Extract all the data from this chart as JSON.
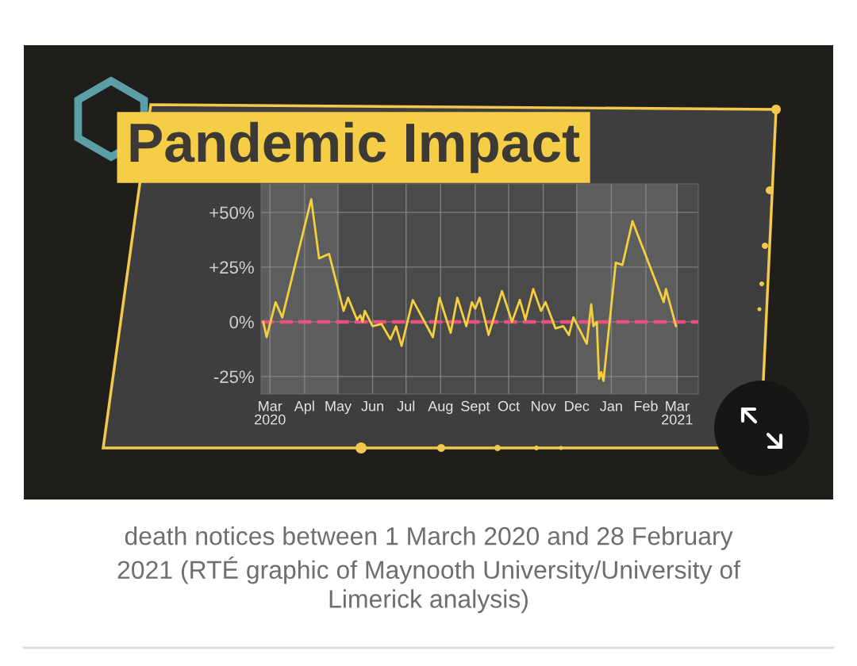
{
  "chart_data": {
    "type": "line",
    "title": "Pandemic Impact",
    "x": [
      "2020-02-24",
      "2020-02-27",
      "2020-03-06",
      "2020-03-12",
      "2020-04-07",
      "2020-04-14",
      "2020-04-23",
      "2020-05-06",
      "2020-05-10",
      "2020-05-18",
      "2020-05-21",
      "2020-05-23",
      "2020-05-25",
      "2020-06-01",
      "2020-06-09",
      "2020-06-17",
      "2020-06-22",
      "2020-06-27",
      "2020-07-07",
      "2020-07-25",
      "2020-07-31",
      "2020-08-10",
      "2020-08-16",
      "2020-08-24",
      "2020-08-29",
      "2020-09-01",
      "2020-09-05",
      "2020-09-13",
      "2020-09-25",
      "2020-10-04",
      "2020-10-11",
      "2020-10-16",
      "2020-10-23",
      "2020-10-30",
      "2020-11-03",
      "2020-11-12",
      "2020-11-19",
      "2020-11-24",
      "2020-11-28",
      "2020-12-10",
      "2020-12-14",
      "2020-12-16",
      "2020-12-19",
      "2020-12-21",
      "2020-12-23",
      "2020-12-25",
      "2021-01-05",
      "2021-01-11",
      "2021-01-20",
      "2021-02-17",
      "2021-02-19",
      "2021-02-28"
    ],
    "series": [
      {
        "color": "#f4d03f",
        "values": [
          0,
          -7,
          9,
          2,
          56,
          29,
          31,
          5,
          11,
          1,
          3,
          0,
          5,
          -2,
          -1,
          -8,
          -2,
          -11,
          10,
          -7,
          11,
          -5,
          11,
          -2,
          9,
          6,
          11,
          -6,
          14,
          0,
          10,
          1,
          15,
          5,
          9,
          -3,
          -2,
          -6,
          2,
          -10,
          8,
          -2,
          0,
          -26,
          -23,
          -27,
          27,
          26,
          46,
          9,
          15,
          -2
        ]
      }
    ],
    "xlim": [
      "2020-02-22",
      "2021-03-20"
    ],
    "ylim": [
      -33,
      63
    ],
    "xticks": [
      {
        "value": "2020-03-01",
        "label": "Mar\n2020"
      },
      {
        "value": "2020-04-01",
        "label": "Apl"
      },
      {
        "value": "2020-05-01",
        "label": "May"
      },
      {
        "value": "2020-06-01",
        "label": "Jun"
      },
      {
        "value": "2020-07-01",
        "label": "Jul"
      },
      {
        "value": "2020-08-01",
        "label": "Aug"
      },
      {
        "value": "2020-09-01",
        "label": "Sept"
      },
      {
        "value": "2020-10-01",
        "label": "Oct"
      },
      {
        "value": "2020-11-01",
        "label": "Nov"
      },
      {
        "value": "2020-12-01",
        "label": "Dec"
      },
      {
        "value": "2021-01-01",
        "label": "Jan"
      },
      {
        "value": "2021-02-01",
        "label": "Feb"
      },
      {
        "value": "2021-03-01",
        "label": "Mar\n2021"
      }
    ],
    "yticks": [
      {
        "value": -25,
        "label": "-25%"
      },
      {
        "value": 0,
        "label": "0%"
      },
      {
        "value": 25,
        "label": "+25%"
      },
      {
        "value": 50,
        "label": "+50%"
      }
    ],
    "grid": true,
    "line_style": "solid",
    "marker": "none",
    "ref_lines": [
      {
        "axis": "y",
        "value": 0,
        "color": "#e8507f",
        "line_style": "dashed"
      }
    ],
    "bands": [
      {
        "axis": "x",
        "from": "2020-02-22",
        "to": "2020-05-01",
        "color": "#5d5d5d"
      },
      {
        "axis": "x",
        "from": "2020-12-01",
        "to": "2021-03-01",
        "color": "#5d5d5d"
      }
    ],
    "annotations": [
      "death notices between 1 March 2020 and 28 February 2021 (RTÉ graphic of Maynooth University/University of Limerick analysis)"
    ]
  }
}
